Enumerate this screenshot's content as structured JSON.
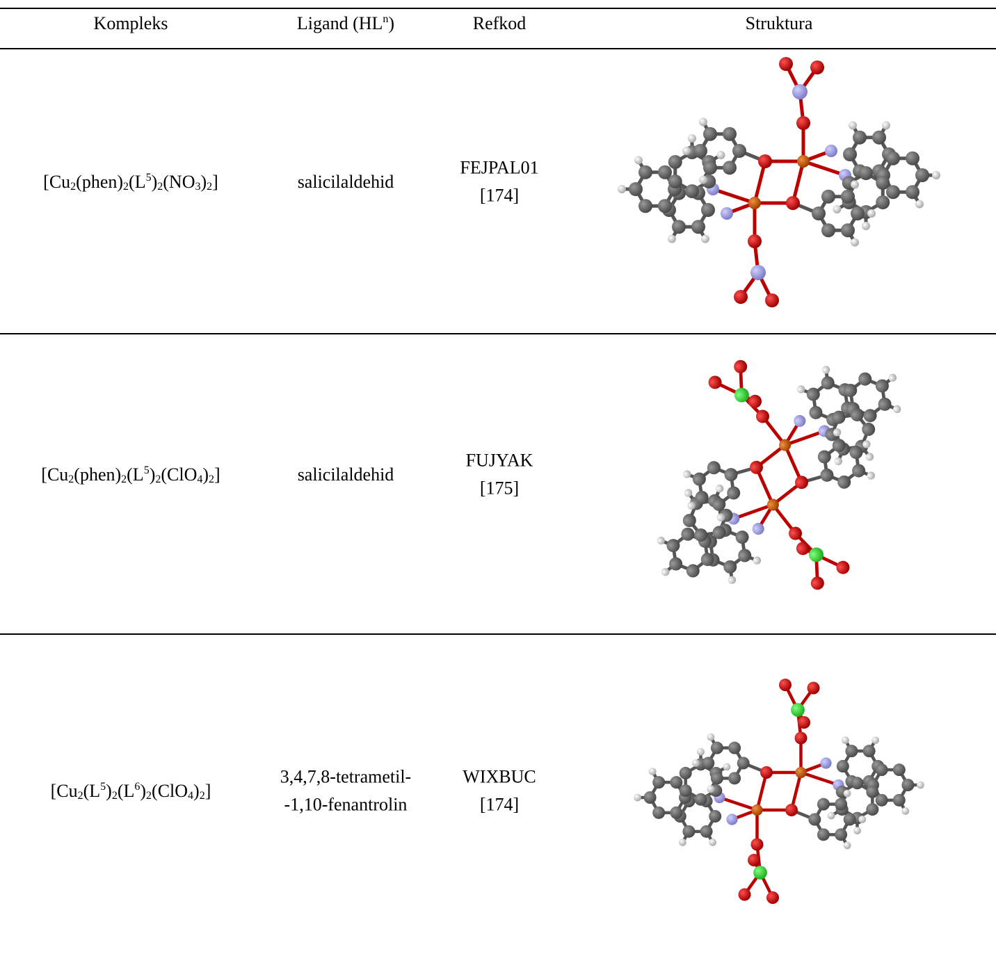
{
  "header": [
    "Kompleks",
    [
      "Ligand (HL",
      {
        "sup": "n"
      },
      ")"
    ],
    "Refkod",
    "Struktura"
  ],
  "rows": [
    {
      "complex": [
        "[Cu",
        {
          "sub": "2"
        },
        "(phen)",
        {
          "sub": "2"
        },
        "(L",
        {
          "sup": "5"
        },
        ")",
        {
          "sub": "2"
        },
        "(NO",
        {
          "sub": "3"
        },
        ")",
        {
          "sub": "2"
        },
        "]"
      ],
      "ligand": [
        "salicilaldehid"
      ],
      "refcode": "FEJPAL01",
      "reference": "[174]"
    },
    {
      "complex": [
        "[Cu",
        {
          "sub": "2"
        },
        "(phen)",
        {
          "sub": "2"
        },
        "(L",
        {
          "sup": "5"
        },
        ")",
        {
          "sub": "2"
        },
        "(ClO",
        {
          "sub": "4"
        },
        ")",
        {
          "sub": "2"
        },
        "]"
      ],
      "ligand": [
        "salicilaldehid"
      ],
      "refcode": "FUJYAK",
      "reference": "[175]"
    },
    {
      "complex": [
        "[Cu",
        {
          "sub": "2"
        },
        "(L",
        {
          "sup": "5"
        },
        ")",
        {
          "sub": "2"
        },
        "(L",
        {
          "sup": "6"
        },
        ")",
        {
          "sub": "2"
        },
        "(ClO",
        {
          "sub": "4"
        },
        ")",
        {
          "sub": "2"
        },
        "]"
      ],
      "ligand": [
        "3,4,7,8-tetrametil-",
        "-1,10-fenantrolin"
      ],
      "refcode": "WIXBUC",
      "reference": "[174]"
    }
  ]
}
